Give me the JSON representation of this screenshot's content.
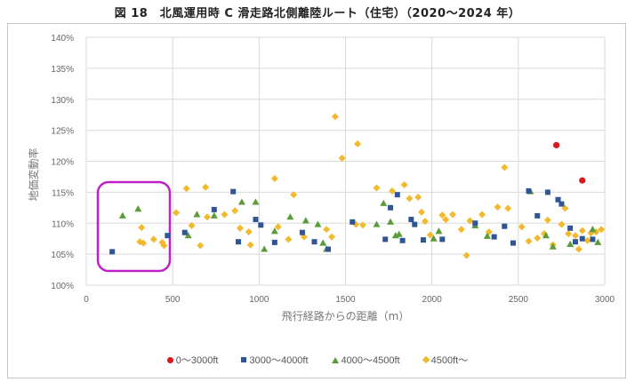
{
  "chart_data": {
    "type": "scatter",
    "title": "図 18　北風運用時 C 滑走路北側離陸ルート（住宅）（2020～2024 年）",
    "xlabel": "飛行経路からの距離（m）",
    "ylabel": "地価変動率",
    "xlim": [
      0,
      3000
    ],
    "ylim": [
      100,
      140
    ],
    "xticks": [
      "0",
      "500",
      "1000",
      "1500",
      "2000",
      "2500",
      "3000"
    ],
    "yticks": [
      "100%",
      "105%",
      "110%",
      "115%",
      "120%",
      "125%",
      "130%",
      "135%",
      "140%"
    ],
    "grid": true,
    "legend_position": "bottom",
    "annotation": "magenta rounded rectangle highlighting points within ~80–480 m",
    "series": [
      {
        "name": "0～3000ft",
        "color": "#d7191c",
        "marker": "circle",
        "points": [
          [
            2720,
            122.6
          ],
          [
            2870,
            116.9
          ]
        ]
      },
      {
        "name": "3000～4000ft",
        "color": "#2f5597",
        "marker": "square",
        "points": [
          [
            150,
            105.4
          ],
          [
            470,
            108.0
          ],
          [
            570,
            108.5
          ],
          [
            740,
            112.2
          ],
          [
            850,
            115.1
          ],
          [
            880,
            107.0
          ],
          [
            980,
            110.6
          ],
          [
            1010,
            109.7
          ],
          [
            1090,
            106.9
          ],
          [
            1250,
            108.5
          ],
          [
            1320,
            107.0
          ],
          [
            1400,
            105.8
          ],
          [
            1540,
            110.2
          ],
          [
            1730,
            107.4
          ],
          [
            1760,
            112.5
          ],
          [
            1800,
            114.6
          ],
          [
            1830,
            107.2
          ],
          [
            1880,
            110.6
          ],
          [
            1900,
            109.8
          ],
          [
            1950,
            107.3
          ],
          [
            2060,
            107.4
          ],
          [
            2250,
            110.0
          ],
          [
            2360,
            107.8
          ],
          [
            2420,
            109.5
          ],
          [
            2470,
            106.8
          ],
          [
            2560,
            115.2
          ],
          [
            2610,
            111.2
          ],
          [
            2670,
            115.0
          ],
          [
            2730,
            113.8
          ],
          [
            2750,
            113.1
          ],
          [
            2800,
            109.2
          ],
          [
            2830,
            107.0
          ],
          [
            2870,
            107.5
          ],
          [
            2930,
            107.4
          ]
        ]
      },
      {
        "name": "4000～4500ft",
        "color": "#5b9b3a",
        "marker": "triangle",
        "points": [
          [
            210,
            111.2
          ],
          [
            300,
            112.3
          ],
          [
            590,
            108.0
          ],
          [
            640,
            111.4
          ],
          [
            740,
            111.2
          ],
          [
            900,
            113.4
          ],
          [
            980,
            113.4
          ],
          [
            1030,
            105.8
          ],
          [
            1090,
            108.7
          ],
          [
            1180,
            111.0
          ],
          [
            1270,
            110.4
          ],
          [
            1340,
            109.8
          ],
          [
            1370,
            106.8
          ],
          [
            1390,
            105.8
          ],
          [
            1680,
            109.8
          ],
          [
            1720,
            113.2
          ],
          [
            1760,
            110.2
          ],
          [
            1790,
            108.0
          ],
          [
            1810,
            108.2
          ],
          [
            2010,
            107.5
          ],
          [
            2040,
            108.7
          ],
          [
            2250,
            109.6
          ],
          [
            2320,
            107.9
          ],
          [
            2570,
            115.1
          ],
          [
            2660,
            108.0
          ],
          [
            2700,
            106.2
          ],
          [
            2800,
            106.6
          ],
          [
            2930,
            109.0
          ],
          [
            2960,
            106.9
          ]
        ]
      },
      {
        "name": "4500ft～",
        "color": "#f2b92c",
        "marker": "diamond",
        "points": [
          [
            310,
            107.0
          ],
          [
            320,
            109.3
          ],
          [
            330,
            106.8
          ],
          [
            390,
            107.4
          ],
          [
            440,
            106.9
          ],
          [
            450,
            106.4
          ],
          [
            520,
            111.7
          ],
          [
            580,
            115.6
          ],
          [
            610,
            109.6
          ],
          [
            660,
            106.4
          ],
          [
            690,
            115.8
          ],
          [
            700,
            111.0
          ],
          [
            800,
            111.4
          ],
          [
            860,
            112.0
          ],
          [
            890,
            109.2
          ],
          [
            940,
            108.6
          ],
          [
            950,
            106.5
          ],
          [
            1090,
            117.2
          ],
          [
            1110,
            109.4
          ],
          [
            1170,
            107.4
          ],
          [
            1200,
            114.6
          ],
          [
            1260,
            107.8
          ],
          [
            1390,
            109.0
          ],
          [
            1420,
            107.8
          ],
          [
            1440,
            127.2
          ],
          [
            1480,
            120.5
          ],
          [
            1570,
            122.8
          ],
          [
            1560,
            109.8
          ],
          [
            1600,
            109.7
          ],
          [
            1680,
            115.7
          ],
          [
            1770,
            115.2
          ],
          [
            1840,
            116.2
          ],
          [
            1870,
            114.0
          ],
          [
            1920,
            114.2
          ],
          [
            1940,
            111.8
          ],
          [
            1960,
            110.3
          ],
          [
            1990,
            108.1
          ],
          [
            2060,
            111.3
          ],
          [
            2080,
            110.6
          ],
          [
            2120,
            111.4
          ],
          [
            2170,
            109.0
          ],
          [
            2200,
            104.8
          ],
          [
            2220,
            110.4
          ],
          [
            2290,
            111.4
          ],
          [
            2330,
            108.6
          ],
          [
            2380,
            112.6
          ],
          [
            2420,
            119.0
          ],
          [
            2440,
            112.4
          ],
          [
            2520,
            109.4
          ],
          [
            2560,
            107.1
          ],
          [
            2610,
            107.6
          ],
          [
            2650,
            108.3
          ],
          [
            2670,
            110.5
          ],
          [
            2700,
            106.5
          ],
          [
            2750,
            109.8
          ],
          [
            2770,
            112.4
          ],
          [
            2790,
            108.3
          ],
          [
            2830,
            108.0
          ],
          [
            2850,
            105.8
          ],
          [
            2870,
            108.8
          ],
          [
            2900,
            107.2
          ],
          [
            2920,
            108.4
          ],
          [
            2950,
            108.6
          ],
          [
            2980,
            109.0
          ]
        ]
      }
    ]
  }
}
